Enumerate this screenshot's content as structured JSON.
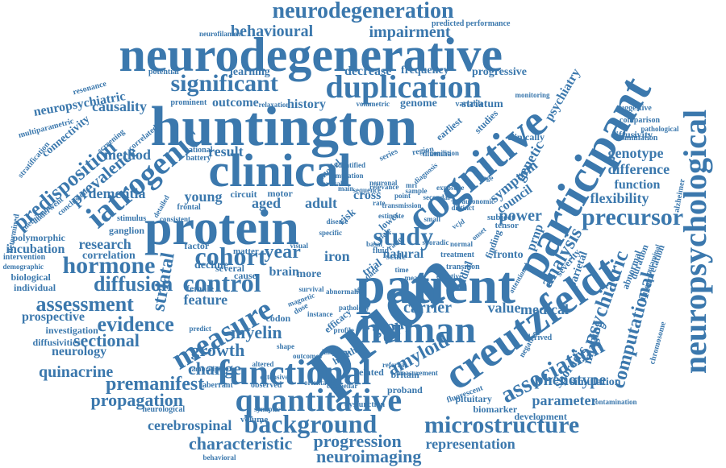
{
  "colors": {
    "word": "#3b78ad",
    "background": "#ffffff"
  },
  "words": [
    "prion",
    "huntington",
    "patient",
    "neurodegenerative",
    "clinical",
    "protein",
    "cognitive",
    "participant",
    "creutzfeldt",
    "neuropsychological",
    "human",
    "duplication",
    "functional",
    "quantitative",
    "iatrogenic",
    "measure",
    "neurodegeneration",
    "study",
    "control",
    "significant",
    "background",
    "cohort",
    "year",
    "association",
    "microstructure",
    "hormone",
    "psychiatric",
    "precursor",
    "diffusion",
    "assessment",
    "predisposition",
    "evidence",
    "computational",
    "striatal",
    "amyloid",
    "growth",
    "myelin",
    "analysis",
    "characteristic",
    "progression",
    "neuroimaging",
    "prevalence",
    "premanifest",
    "propagation",
    "sectional",
    "quinacrine",
    "behavioural",
    "impairment",
    "outcome",
    "history",
    "method",
    "dementia",
    "young",
    "aged",
    "adult",
    "power",
    "feature",
    "group",
    "carrier",
    "value",
    "medical",
    "genetic",
    "symptom",
    "genotype",
    "difference",
    "flexibility",
    "function",
    "phenotype",
    "parameter",
    "sporadic",
    "simulation",
    "imaging",
    "representation",
    "cerebrospinal",
    "research",
    "neurology",
    "prospective",
    "incubation",
    "correlation",
    "decline",
    "cross",
    "natural",
    "risk",
    "iron",
    "trial",
    "scale",
    "fronto",
    "radial",
    "parietal",
    "council",
    "prnp",
    "result",
    "learning",
    "decrease",
    "frequency",
    "progressive",
    "psychiatry",
    "striatum",
    "genome",
    "causality",
    "connectivity",
    "neuropsychiatric",
    "brain",
    "more",
    "change",
    "codon",
    "development",
    "biomarker",
    "pituitary",
    "proband",
    "britain",
    "related",
    "healthy",
    "volume",
    "dysfunction",
    "observed",
    "aberrant",
    "cambridge",
    "neurological",
    "contamination",
    "alzheimer",
    "chromosome",
    "examination",
    "diffusivity",
    "comparison",
    "pathological",
    "suggestive",
    "polymorphic",
    "ganglion",
    "stimulus",
    "intervention",
    "demographic",
    "biological",
    "individual",
    "investigation",
    "diffusivities",
    "determined",
    "methionine",
    "stratification",
    "screening",
    "correlated",
    "potential",
    "resonance",
    "multiparametric",
    "prominent",
    "neurofilament",
    "performance",
    "predicted",
    "monitoring",
    "variable",
    "illumina",
    "region",
    "earliest",
    "studies",
    "series",
    "model",
    "national",
    "battery",
    "female",
    "cause",
    "matter",
    "several",
    "factor",
    "circuit",
    "motor",
    "main",
    "mutation",
    "detailed",
    "frontal",
    "consistent",
    "underwent",
    "conclusion",
    "clinically",
    "abnormal",
    "duration",
    "interpretation",
    "putaminal",
    "severity",
    "subject",
    "finding",
    "tensor",
    "lower",
    "male",
    "ratio",
    "score",
    "data",
    "fluid",
    "basal",
    "transition",
    "treatment",
    "referral",
    "profile",
    "efficacy",
    "effective",
    "dose",
    "magnetic",
    "fluorescent",
    "derived",
    "negative",
    "attentional",
    "orientated",
    "extensive",
    "cerebellar",
    "measurement",
    "behavioral",
    "synaptic",
    "volumetric",
    "relaxation",
    "altered",
    "visual",
    "point",
    "estimate",
    "relevance",
    "sequence",
    "identified",
    "condition",
    "diagnosis",
    "autonomic",
    "distinct",
    "secondary",
    "sample",
    "exposure",
    "specific",
    "disease",
    "mri",
    "transmission",
    "vcjd",
    "sporadic",
    "onset",
    "survival",
    "pathology",
    "abnormality",
    "instance",
    "predict",
    "outcomes",
    "kingdom",
    "shape",
    "neuronal",
    "cortical",
    "rate",
    "age",
    "small",
    "normal",
    "mean",
    "time",
    "level"
  ]
}
